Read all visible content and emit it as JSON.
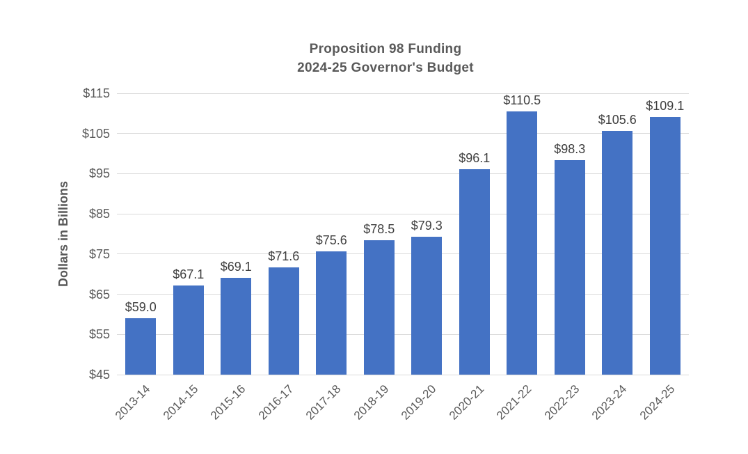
{
  "chart_data": {
    "type": "bar",
    "title_lines": [
      "Proposition 98 Funding",
      "2024-25 Governor's Budget"
    ],
    "xlabel": "",
    "ylabel": "Dollars in Billions",
    "categories": [
      "2013-14",
      "2014-15",
      "2015-16",
      "2016-17",
      "2017-18",
      "2018-19",
      "2019-20",
      "2020-21",
      "2021-22",
      "2022-23",
      "2023-24",
      "2024-25"
    ],
    "values": [
      59.0,
      67.1,
      69.1,
      71.6,
      75.6,
      78.5,
      79.3,
      96.1,
      110.5,
      98.3,
      105.6,
      109.1
    ],
    "bar_labels": [
      "$59.0",
      "$67.1",
      "$69.1",
      "$71.6",
      "$75.6",
      "$78.5",
      "$79.3",
      "$96.1",
      "$110.5",
      "$98.3",
      "$105.6",
      "$109.1"
    ],
    "ylim": [
      45,
      115
    ],
    "yticks": [
      {
        "value": 45,
        "label": "$45"
      },
      {
        "value": 55,
        "label": "$55"
      },
      {
        "value": 65,
        "label": "$65"
      },
      {
        "value": 75,
        "label": "$75"
      },
      {
        "value": 85,
        "label": "$85"
      },
      {
        "value": 95,
        "label": "$95"
      },
      {
        "value": 105,
        "label": "$105"
      },
      {
        "value": 115,
        "label": "$115"
      }
    ],
    "grid": true,
    "legend": "none",
    "colors": {
      "bar": "#4472C4",
      "gridline": "#D9D9D9",
      "axis_text": "#595959",
      "title_text": "#595959",
      "data_label_text": "#3F3F3F",
      "background": "#FFFFFF"
    }
  }
}
